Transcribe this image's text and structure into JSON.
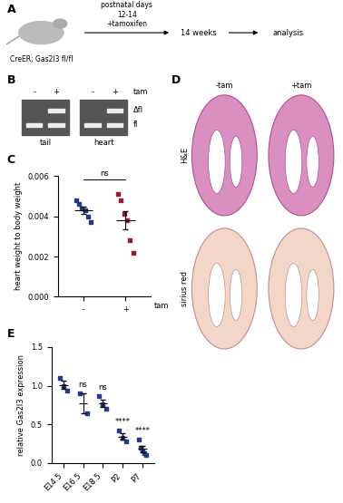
{
  "chart_data": [
    {
      "type": "scatter",
      "panel": "C",
      "categories": [
        "-",
        "+"
      ],
      "x_label": "tam",
      "y_label": "heart weight to body weight",
      "points": [
        [
          0.0048,
          0.0046,
          0.0044,
          0.0043,
          0.004,
          0.0037
        ],
        [
          0.0051,
          0.0048,
          0.0041,
          0.0038,
          0.0028,
          0.0022
        ]
      ],
      "mean": [
        0.0043,
        0.0038
      ],
      "sem": [
        0.00016,
        0.00046
      ],
      "colors": [
        "#1f3d8a",
        "#9b1b30"
      ],
      "marker": "square",
      "comparison": "ns",
      "ylim": [
        0,
        0.006
      ],
      "yticks": [
        {
          "value": 0,
          "label": "0.000"
        },
        {
          "value": 0.002,
          "label": "0.002"
        },
        {
          "value": 0.004,
          "label": "0.004"
        },
        {
          "value": 0.006,
          "label": "0.006"
        }
      ]
    },
    {
      "type": "scatter",
      "panel": "E",
      "categories": [
        "E14.5",
        "E16.5",
        "E18.5",
        "P2",
        "P7"
      ],
      "y_label": "relative Gas2l3 expression",
      "points": [
        [
          1.1,
          1.0,
          0.93
        ],
        [
          0.9,
          0.64
        ],
        [
          0.86,
          0.76,
          0.7
        ],
        [
          0.42,
          0.33,
          0.28
        ],
        [
          0.3,
          0.2,
          0.16,
          0.12,
          0.1
        ]
      ],
      "mean": [
        1.01,
        0.77,
        0.77,
        0.34,
        0.18
      ],
      "sem": [
        0.05,
        0.13,
        0.05,
        0.04,
        0.04
      ],
      "significance": [
        null,
        "ns",
        "ns",
        "****",
        "****"
      ],
      "color": "#1f3d8a",
      "marker": "square",
      "ylim": [
        0,
        1.5
      ],
      "yticks": [
        {
          "value": 0,
          "label": "0.0"
        },
        {
          "value": 0.5,
          "label": "0.5"
        },
        {
          "value": 1.0,
          "label": "1.0"
        },
        {
          "value": 1.5,
          "label": "1.5"
        }
      ]
    }
  ],
  "panel_a": {
    "label": "A",
    "genotype": "CreER; Gas2l3 fl/fl",
    "treatment": [
      "postnatal days",
      "12-14",
      "+tamoxifen"
    ],
    "steps": [
      "14 weeks",
      "analysis"
    ]
  },
  "panel_b": {
    "label": "B",
    "lanes": [
      "-",
      "+"
    ],
    "treatment": "tam",
    "tissues": [
      "tail",
      "heart"
    ],
    "bands": [
      "Δfl",
      "fl"
    ]
  },
  "panel_d": {
    "label": "D",
    "columns": [
      "-tam",
      "+tam"
    ],
    "rows": [
      "H&E",
      "sirius red"
    ]
  }
}
